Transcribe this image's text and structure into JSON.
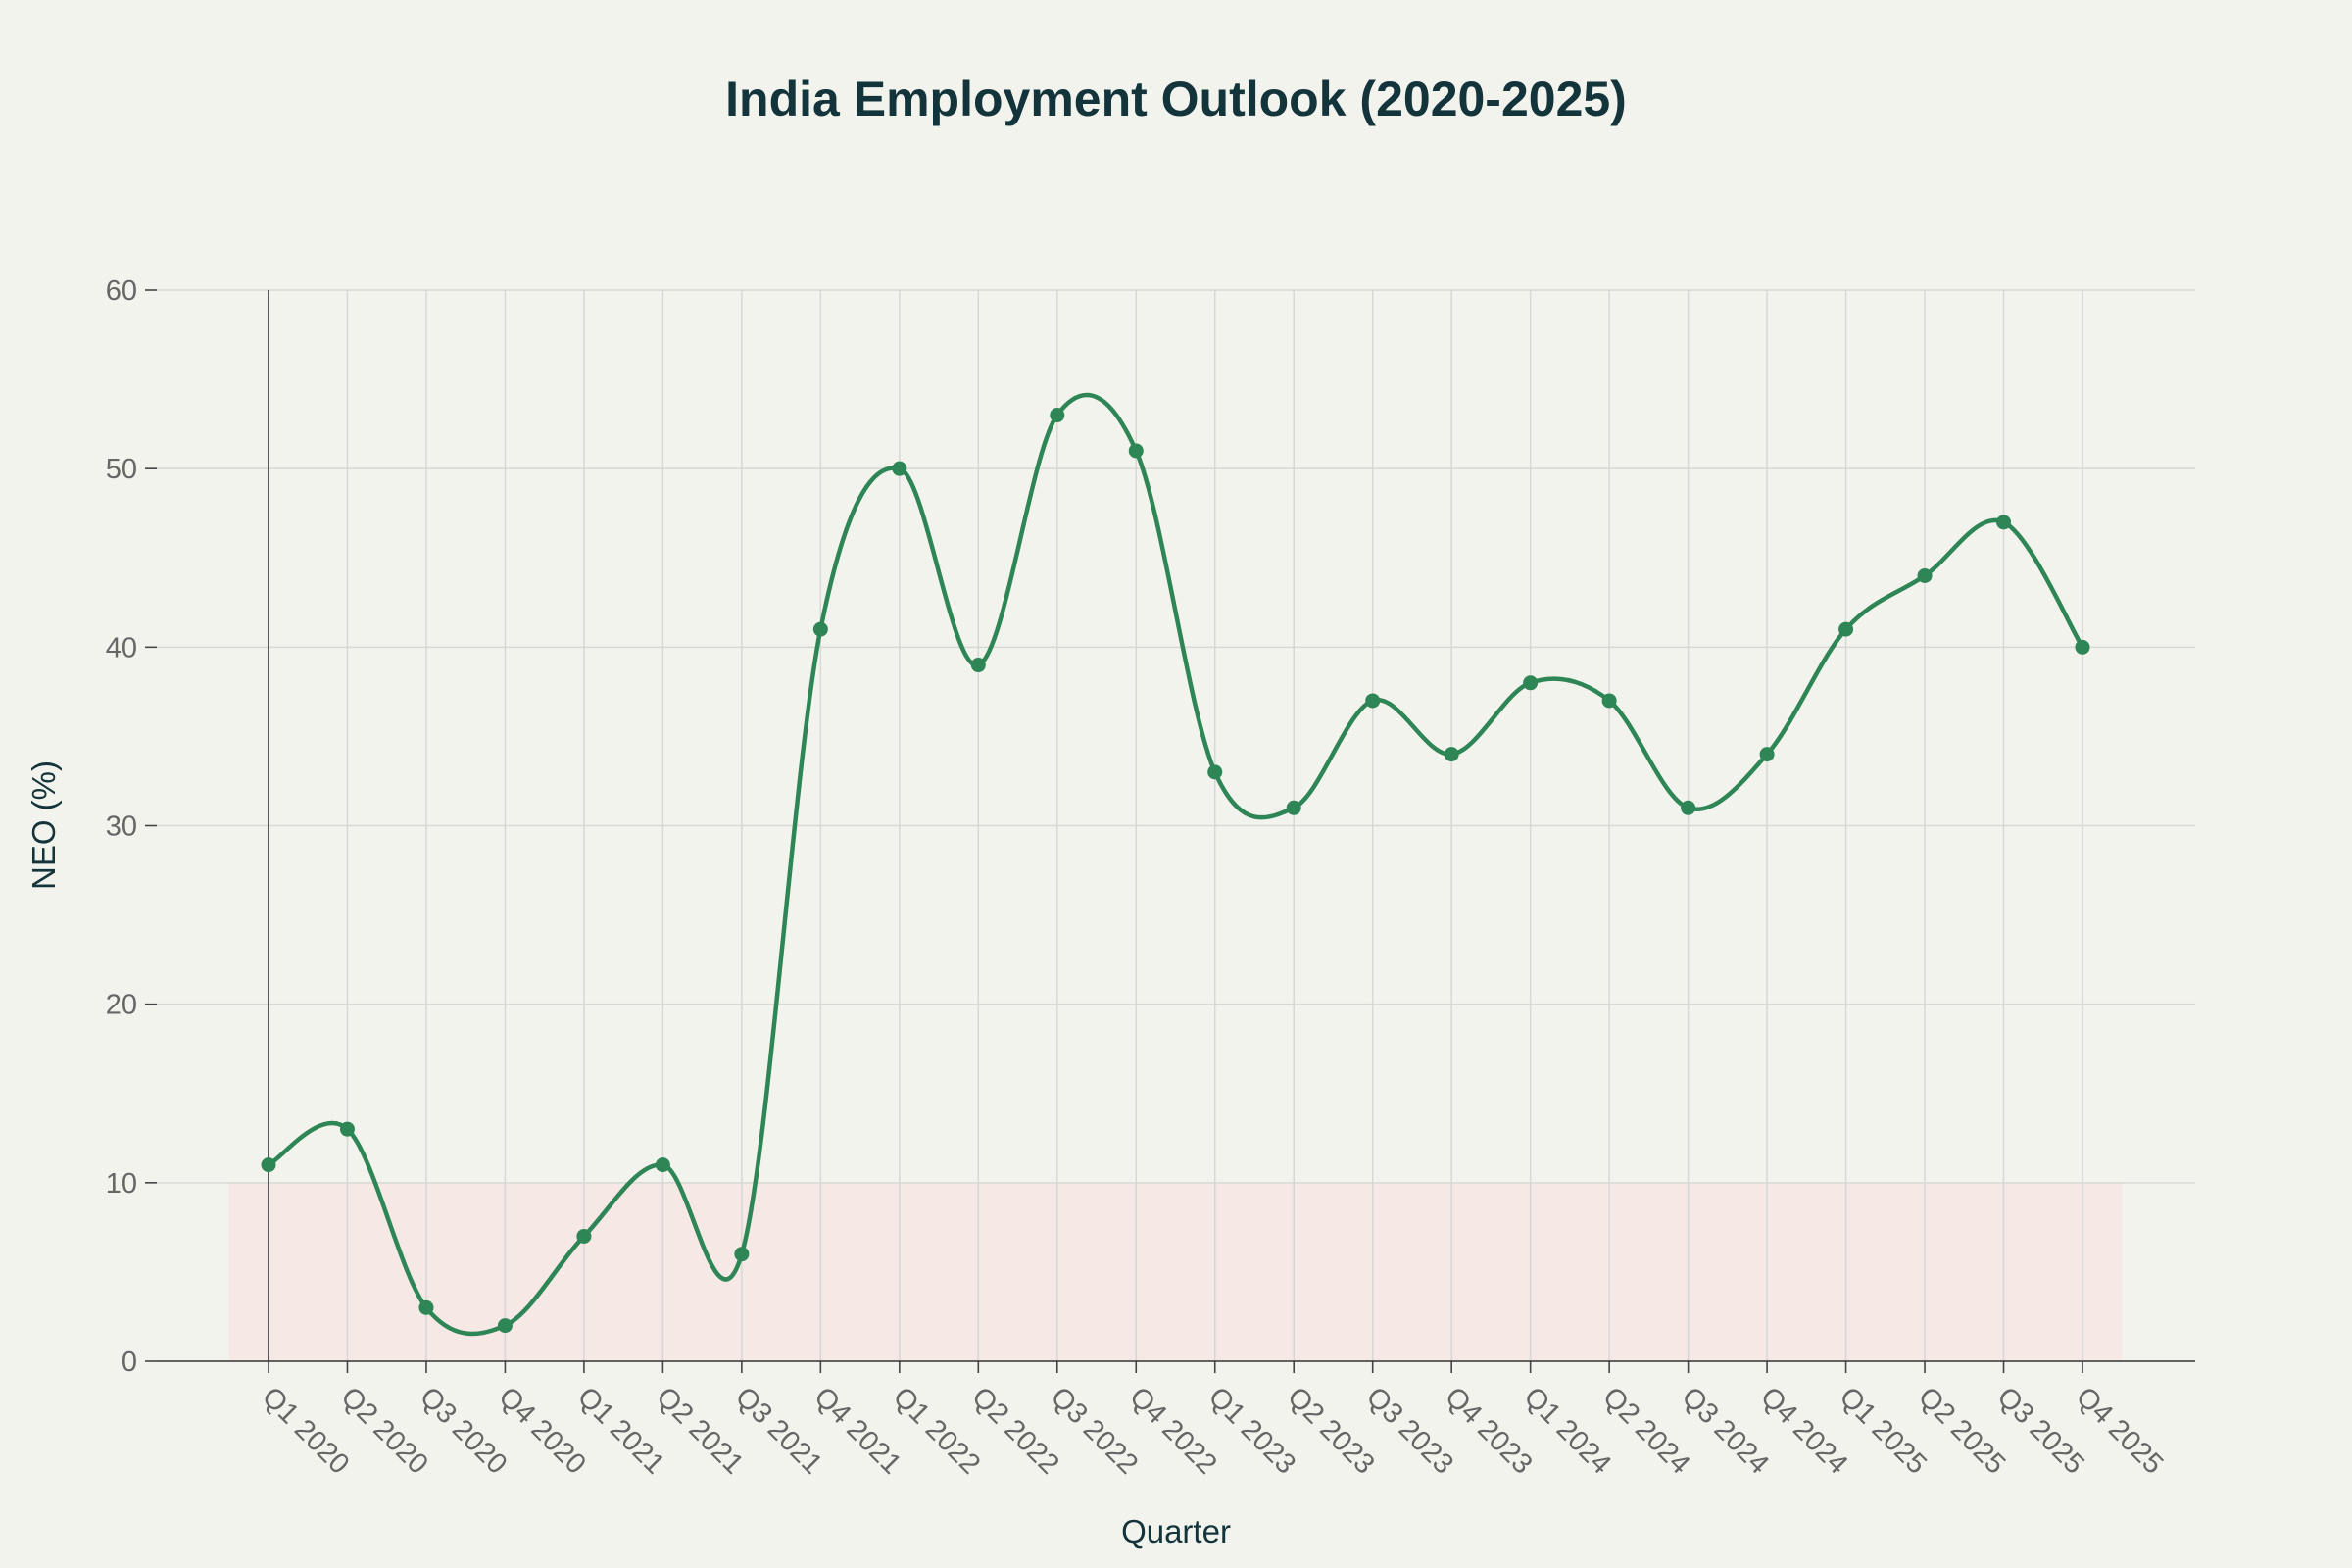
{
  "colors": {
    "background": "#f3f3ee",
    "series": "#2e8555",
    "band": "#f5e8e5",
    "title": "#13343b"
  },
  "chart_data": {
    "type": "line",
    "title": "India Employment Outlook (2020-2025)",
    "xlabel": "Quarter",
    "ylabel": "NEO (%)",
    "ylim": [
      0,
      60
    ],
    "yticks": [
      0,
      10,
      20,
      30,
      40,
      50,
      60
    ],
    "grid": true,
    "line_shape": "spline",
    "markers": true,
    "shaded_band": {
      "y0": 0,
      "y1": 10
    },
    "categories": [
      "Q1 2020",
      "Q2 2020",
      "Q3 2020",
      "Q4 2020",
      "Q1 2021",
      "Q2 2021",
      "Q3 2021",
      "Q4 2021",
      "Q1 2022",
      "Q2 2022",
      "Q3 2022",
      "Q4 2022",
      "Q1 2023",
      "Q2 2023",
      "Q3 2023",
      "Q4 2023",
      "Q1 2024",
      "Q2 2024",
      "Q3 2024",
      "Q4 2024",
      "Q1 2025",
      "Q2 2025",
      "Q3 2025",
      "Q4 2025"
    ],
    "series": [
      {
        "values": [
          11,
          13,
          3,
          2,
          7,
          11,
          6,
          41,
          50,
          39,
          53,
          51,
          33,
          31,
          37,
          34,
          38,
          37,
          31,
          34,
          41,
          44,
          47,
          40
        ]
      }
    ]
  }
}
